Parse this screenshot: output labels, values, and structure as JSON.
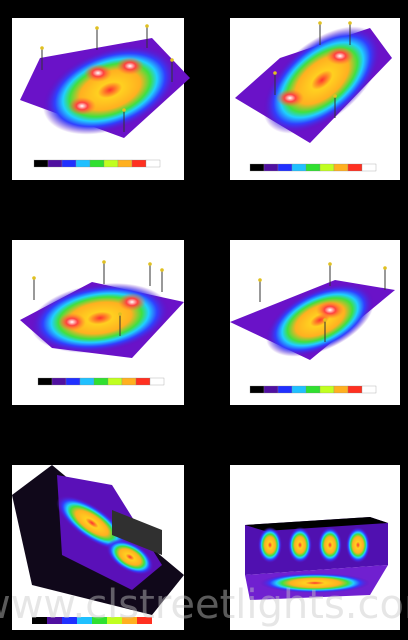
{
  "watermark": "www.clstreetlights.com"
}
